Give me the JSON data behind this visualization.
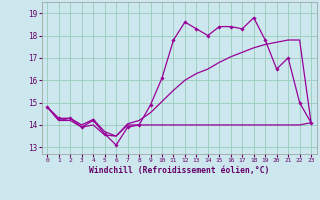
{
  "xlabel": "Windchill (Refroidissement éolien,°C)",
  "background_color": "#cce8ee",
  "grid_color": "#99ccbb",
  "line_color": "#990099",
  "x_ticks": [
    0,
    1,
    2,
    3,
    4,
    5,
    6,
    7,
    8,
    9,
    10,
    11,
    12,
    13,
    14,
    15,
    16,
    17,
    18,
    19,
    20,
    21,
    22,
    23
  ],
  "y_ticks": [
    13,
    14,
    15,
    16,
    17,
    18,
    19
  ],
  "xlim": [
    -0.5,
    23.5
  ],
  "ylim": [
    12.7,
    19.5
  ],
  "series1_x": [
    0,
    1,
    2,
    3,
    4,
    5,
    6,
    7,
    8,
    9,
    10,
    11,
    12,
    13,
    14,
    15,
    16,
    17,
    18,
    19,
    20,
    21,
    22,
    23
  ],
  "series1_y": [
    14.8,
    14.3,
    14.3,
    13.9,
    14.2,
    13.6,
    13.1,
    13.9,
    14.0,
    14.9,
    16.1,
    17.8,
    18.6,
    18.3,
    18.0,
    18.4,
    18.4,
    18.3,
    18.8,
    17.8,
    16.5,
    17.0,
    15.0,
    14.1
  ],
  "series2_x": [
    0,
    1,
    2,
    3,
    4,
    5,
    6,
    7,
    8,
    9,
    10,
    11,
    12,
    13,
    14,
    15,
    16,
    17,
    18,
    19,
    20,
    21,
    22,
    23
  ],
  "series2_y": [
    14.8,
    14.2,
    14.2,
    13.9,
    14.0,
    13.55,
    13.5,
    14.0,
    14.0,
    14.0,
    14.0,
    14.0,
    14.0,
    14.0,
    14.0,
    14.0,
    14.0,
    14.0,
    14.0,
    14.0,
    14.0,
    14.0,
    14.0,
    14.1
  ],
  "series3_x": [
    0,
    1,
    2,
    3,
    4,
    5,
    6,
    7,
    8,
    9,
    10,
    11,
    12,
    13,
    14,
    15,
    16,
    17,
    18,
    19,
    20,
    21,
    22,
    23
  ],
  "series3_y": [
    14.8,
    14.2,
    14.3,
    14.0,
    14.25,
    13.7,
    13.5,
    14.05,
    14.2,
    14.55,
    15.05,
    15.55,
    16.0,
    16.3,
    16.5,
    16.8,
    17.05,
    17.25,
    17.45,
    17.6,
    17.7,
    17.8,
    17.8,
    14.1
  ]
}
